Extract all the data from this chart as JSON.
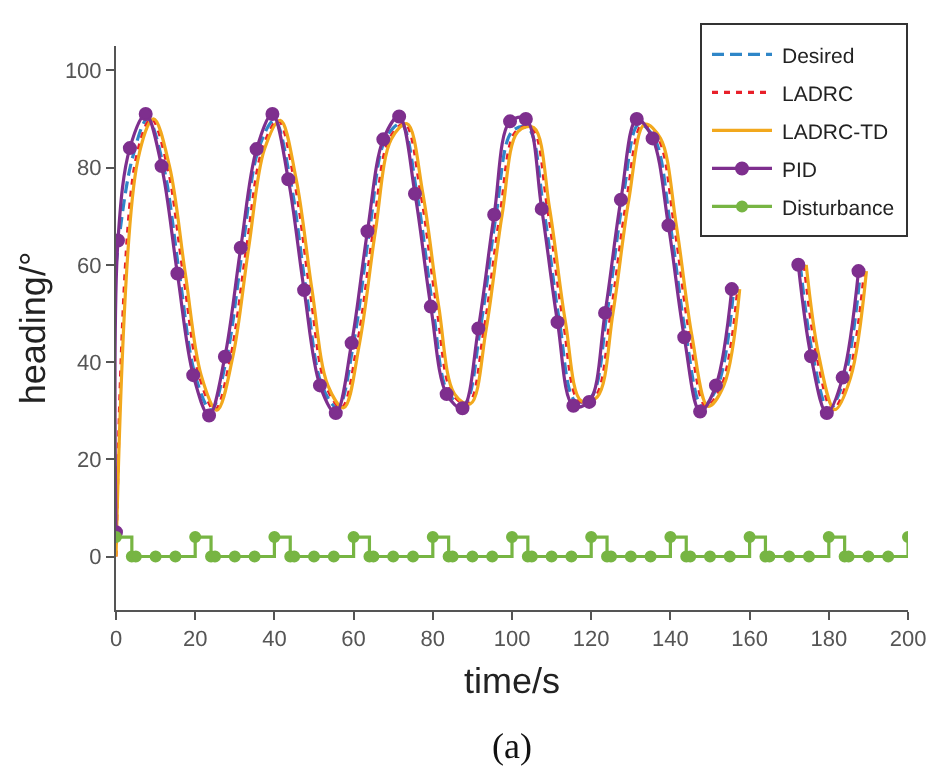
{
  "chart_data": {
    "type": "line",
    "xlabel": "time/s",
    "ylabel": "heading/°",
    "xlim": [
      0,
      200
    ],
    "xticks": [
      0,
      20,
      40,
      60,
      80,
      100,
      120,
      140,
      160,
      180,
      200
    ],
    "ylim": [
      -11,
      105
    ],
    "yticks": [
      0,
      20,
      40,
      60,
      80,
      100
    ],
    "legend": "top right",
    "annotations": [
      "(a)"
    ],
    "series": [
      {
        "name": "Desired",
        "color": "#2f86c8",
        "line_style": "dashed",
        "marker": "none",
        "x": [
          0,
          4,
          8,
          12,
          16,
          20,
          24,
          28,
          32,
          36,
          40,
          44,
          48,
          52,
          56,
          60,
          64,
          68,
          72,
          76,
          80,
          84,
          88,
          92,
          96,
          100,
          104,
          108,
          112,
          116,
          120,
          124,
          128,
          132,
          136,
          140,
          144,
          148,
          152,
          156,
          null,
          172.8,
          176,
          180,
          184,
          188
        ],
        "values": [
          60,
          81.5,
          90,
          80.3,
          58.2,
          37.3,
          30.1,
          41.1,
          63.5,
          83.8,
          89.7,
          77.6,
          54.8,
          35.2,
          30.6,
          43.9,
          66.9,
          85.8,
          89,
          74.6,
          51.4,
          33.4,
          31.4,
          46.9,
          70.3,
          87.4,
          88.2,
          71.5,
          48.2,
          32,
          32.8,
          50.1,
          73.4,
          88.9,
          86,
          68.1,
          45.1,
          30.9,
          35.2,
          55,
          null,
          60,
          41.2,
          30.2,
          36.8,
          58.7
        ]
      },
      {
        "name": "LADRC",
        "color": "#e8202a",
        "line_style": "dotted",
        "marker": "none",
        "x": [
          0,
          5,
          9,
          13,
          17,
          21,
          25,
          29,
          33,
          37,
          41,
          45,
          49,
          53,
          57,
          61,
          65,
          69,
          73,
          77,
          81,
          85,
          89,
          93,
          97,
          101,
          105,
          109,
          113,
          117,
          121,
          125,
          129,
          133,
          137,
          141,
          145,
          149,
          153,
          157,
          null,
          173.8,
          177,
          181,
          185,
          189
        ],
        "values": [
          0,
          81.5,
          90,
          80.3,
          58.2,
          37.3,
          30.1,
          41.1,
          63.5,
          83.8,
          89.7,
          77.6,
          54.8,
          35.2,
          30.6,
          43.9,
          66.9,
          85.8,
          89,
          74.6,
          51.4,
          33.4,
          31.4,
          46.9,
          70.3,
          87.4,
          88.2,
          71.5,
          48.2,
          32,
          32.8,
          50.1,
          73.4,
          88.9,
          86,
          68.1,
          45.1,
          30.9,
          35.2,
          55,
          null,
          60,
          41.2,
          30.2,
          36.8,
          58.7
        ]
      },
      {
        "name": "LADRC-TD",
        "color": "#f2a81d",
        "line_style": "solid",
        "marker": "none",
        "x": [
          0,
          5.5,
          9.5,
          13.5,
          17.5,
          21.5,
          25.5,
          29.5,
          33.5,
          37.5,
          41.5,
          45.5,
          49.5,
          53.5,
          57.5,
          61.5,
          65.5,
          69.5,
          73.5,
          77.5,
          81.5,
          85.5,
          89.5,
          93.5,
          97.5,
          101.5,
          105.5,
          109.5,
          113.5,
          117.5,
          121.5,
          125.5,
          129.5,
          133.5,
          137.5,
          141.5,
          145.5,
          149.5,
          153.5,
          157.5,
          null,
          174.3,
          177.5,
          181.5,
          185.5,
          189.5
        ],
        "values": [
          0,
          81.5,
          90,
          80.3,
          58.2,
          37.3,
          30.1,
          41.1,
          63.5,
          83.8,
          89.7,
          77.6,
          54.8,
          35.2,
          30.6,
          43.9,
          66.9,
          85.8,
          89,
          74.6,
          51.4,
          33.4,
          31.4,
          46.9,
          70.3,
          87.4,
          88.2,
          71.5,
          48.2,
          32,
          32.8,
          50.1,
          73.4,
          88.9,
          86,
          68.1,
          45.1,
          30.9,
          35.2,
          55,
          null,
          60,
          41.2,
          30.2,
          36.8,
          58.7
        ]
      },
      {
        "name": "PID",
        "color": "#7e2f8e",
        "line_style": "solid",
        "marker": "circle",
        "x": [
          0,
          0.5,
          3.5,
          7.5,
          11.5,
          15.5,
          19.5,
          23.5,
          27.5,
          31.5,
          35.5,
          39.5,
          43.5,
          47.5,
          51.5,
          55.5,
          59.5,
          63.5,
          67.5,
          71.5,
          75.5,
          79.5,
          83.5,
          87.5,
          91.5,
          95.5,
          99.5,
          103.5,
          107.5,
          111.5,
          115.5,
          119.5,
          123.5,
          127.5,
          131.5,
          135.5,
          139.5,
          143.5,
          147.5,
          151.5,
          155.5,
          null,
          172.3,
          175.5,
          179.5,
          183.5,
          187.5
        ],
        "values": [
          5,
          65,
          84,
          91,
          80.3,
          58.2,
          37.3,
          29,
          41.1,
          63.5,
          83.8,
          91,
          77.6,
          54.8,
          35.2,
          29.5,
          43.9,
          66.9,
          85.8,
          90.5,
          74.6,
          51.4,
          33.4,
          30.5,
          46.9,
          70.3,
          89.5,
          90,
          71.5,
          48.2,
          31,
          31.8,
          50.1,
          73.4,
          90,
          86,
          68.1,
          45.1,
          29.8,
          35.2,
          55,
          null,
          60,
          41.2,
          29.5,
          36.8,
          58.7
        ]
      },
      {
        "name": "Disturbance",
        "type": "step",
        "color": "#77b543",
        "line_style": "solid",
        "marker": "circle",
        "x": [
          0,
          4,
          5,
          10,
          15,
          20,
          24,
          25,
          30,
          35,
          40,
          44,
          45,
          50,
          55,
          60,
          64,
          65,
          70,
          75,
          80,
          84,
          85,
          90,
          95,
          100,
          104,
          105,
          110,
          115,
          120,
          124,
          125,
          130,
          135,
          140,
          144,
          145,
          150,
          155,
          160,
          164,
          165,
          170,
          175,
          180,
          184,
          185,
          190,
          195,
          200
        ],
        "values": [
          4,
          0,
          0,
          0,
          0,
          4,
          0,
          0,
          0,
          0,
          4,
          0,
          0,
          0,
          0,
          4,
          0,
          0,
          0,
          0,
          4,
          0,
          0,
          0,
          0,
          4,
          0,
          0,
          0,
          0,
          4,
          0,
          0,
          0,
          0,
          4,
          0,
          0,
          0,
          0,
          4,
          0,
          0,
          0,
          0,
          4,
          0,
          0,
          0,
          0,
          4
        ]
      }
    ]
  }
}
